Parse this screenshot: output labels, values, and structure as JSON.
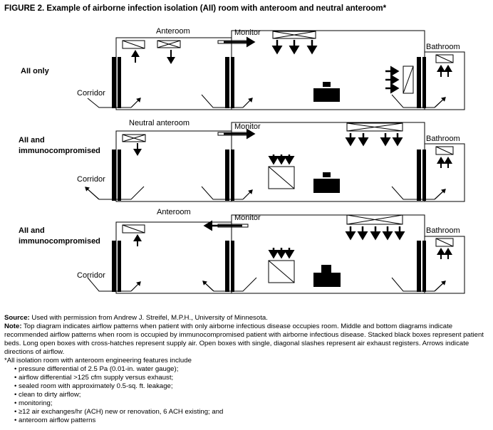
{
  "title": "FIGURE 2. Example of airborne infection isolation (AII) room with anteroom and neutral anteroom*",
  "diagrams": [
    {
      "row_label": "AII only",
      "anteroom_label": "Anteroom",
      "monitor_label": "Monitor",
      "bathroom_label": "Bathroom",
      "corridor_label": "Corridor"
    },
    {
      "row_label_1": "AII and",
      "row_label_2": "immunocompromised",
      "anteroom_label": "Neutral anteroom",
      "monitor_label": "Monitor",
      "bathroom_label": "Bathroom",
      "corridor_label": "Corridor"
    },
    {
      "row_label_1": "AII and",
      "row_label_2": "immunocompromised",
      "anteroom_label": "Anteroom",
      "monitor_label": "Monitor",
      "bathroom_label": "Bathroom",
      "corridor_label": "Corridor"
    }
  ],
  "source_label": "Source:",
  "source_text": " Used with permission from Andrew J. Streifel, M.P.H., University of Minnesota.",
  "note_label": "Note:",
  "note_text": " Top diagram indicates airflow patterns when patient with only airborne infectious disease occupies room. Middle and bottom diagrams indicate recommended airflow patterns when room is occupied by immunocompromised patient with airborne infectious disease. Stacked black boxes represent patient beds. Long open boxes with cross-hatches represent supply air. Open boxes with single, diagonal slashes represent air exhaust registers. Arrows indicate directions of airflow.",
  "footnote": "*All isolation room with anteroom engineering features include",
  "features": [
    "pressure differential of 2.5 Pa (0.01-in. water gauge);",
    "airflow differential >125 cfm supply versus exhaust;",
    "sealed room with approximately 0.5-sq. ft. leakage;",
    "clean to dirty airflow;",
    "monitoring;",
    "≥12 air exchanges/hr (ACH) new or renovation, 6 ACH existing; and",
    "anteroom airflow patterns"
  ]
}
